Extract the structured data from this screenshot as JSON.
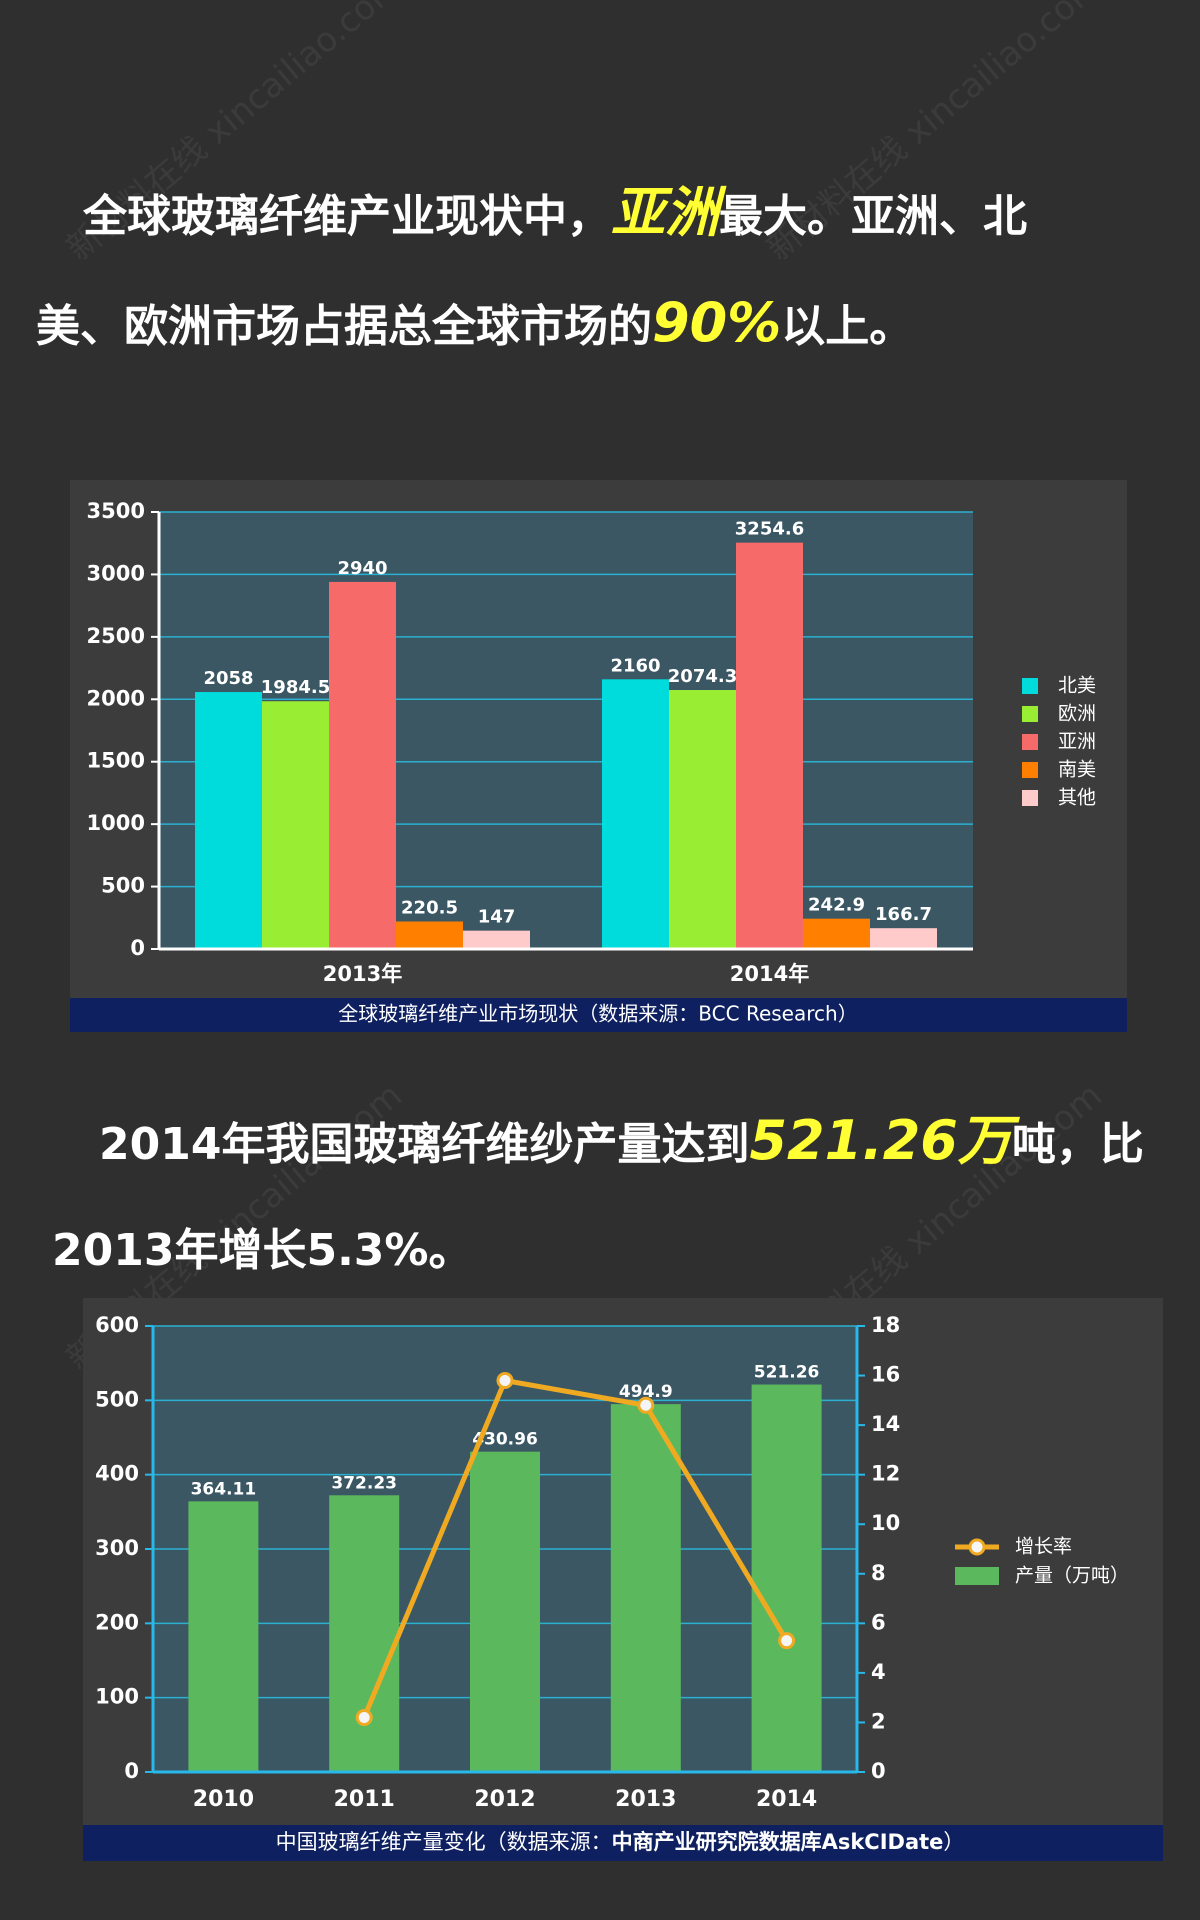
{
  "watermark": "新材料在线 xincailiao.com",
  "headline_1": [
    "全球玻璃纤维产业现状中，",
    "亚洲",
    "最大。亚洲、北",
    "美、欧洲市场占据总全球市场的",
    "90%",
    "以上。"
  ],
  "headline_2": [
    "2014年我国玻璃纤维纱产量达到",
    "521.26万",
    "吨，比",
    "2013年增长5.3%。"
  ],
  "chart_data": [
    {
      "type": "bar",
      "caption": "全球玻璃纤维产业市场现状（数据来源：BCC Research）",
      "categories": [
        "2013年",
        "2014年"
      ],
      "series": [
        {
          "name": "北美",
          "color": "#00dcdc",
          "values": [
            2058,
            2160
          ]
        },
        {
          "name": "欧洲",
          "color": "#99ee33",
          "values": [
            1984.5,
            2074.3
          ]
        },
        {
          "name": "亚洲",
          "color": "#f76a6a",
          "values": [
            2940,
            3254.6
          ]
        },
        {
          "name": "南美",
          "color": "#ff8000",
          "values": [
            220.5,
            242.9
          ]
        },
        {
          "name": "其他",
          "color": "#ffcaca",
          "values": [
            147,
            166.7
          ]
        }
      ],
      "ylim": [
        0,
        3500
      ],
      "yticks": [
        0,
        500,
        1000,
        1500,
        2000,
        2500,
        3000,
        3500
      ],
      "grid": true
    },
    {
      "type": "bar-line",
      "caption": [
        "中国玻璃纤维产量变化（数据来源：",
        "中商产业研究院数据库AskCIDate",
        "）"
      ],
      "categories": [
        "2010",
        "2011",
        "2012",
        "2013",
        "2014"
      ],
      "series": [
        {
          "name": "增长率",
          "type": "line",
          "axis": "y2",
          "color": "#f0aa22",
          "values": [
            null,
            2.2,
            15.8,
            14.8,
            5.3
          ]
        },
        {
          "name": "产量（万吨）",
          "type": "bar",
          "color": "#5cb85c",
          "values": [
            364.11,
            372.23,
            430.96,
            494.9,
            521.26
          ]
        }
      ],
      "ylim": [
        0,
        600
      ],
      "yticks": [
        0,
        100,
        200,
        300,
        400,
        500,
        600
      ],
      "y2lim": [
        0,
        18
      ],
      "y2ticks": [
        0,
        2,
        4,
        6,
        8,
        10,
        12,
        14,
        16,
        18
      ],
      "grid": true
    }
  ]
}
